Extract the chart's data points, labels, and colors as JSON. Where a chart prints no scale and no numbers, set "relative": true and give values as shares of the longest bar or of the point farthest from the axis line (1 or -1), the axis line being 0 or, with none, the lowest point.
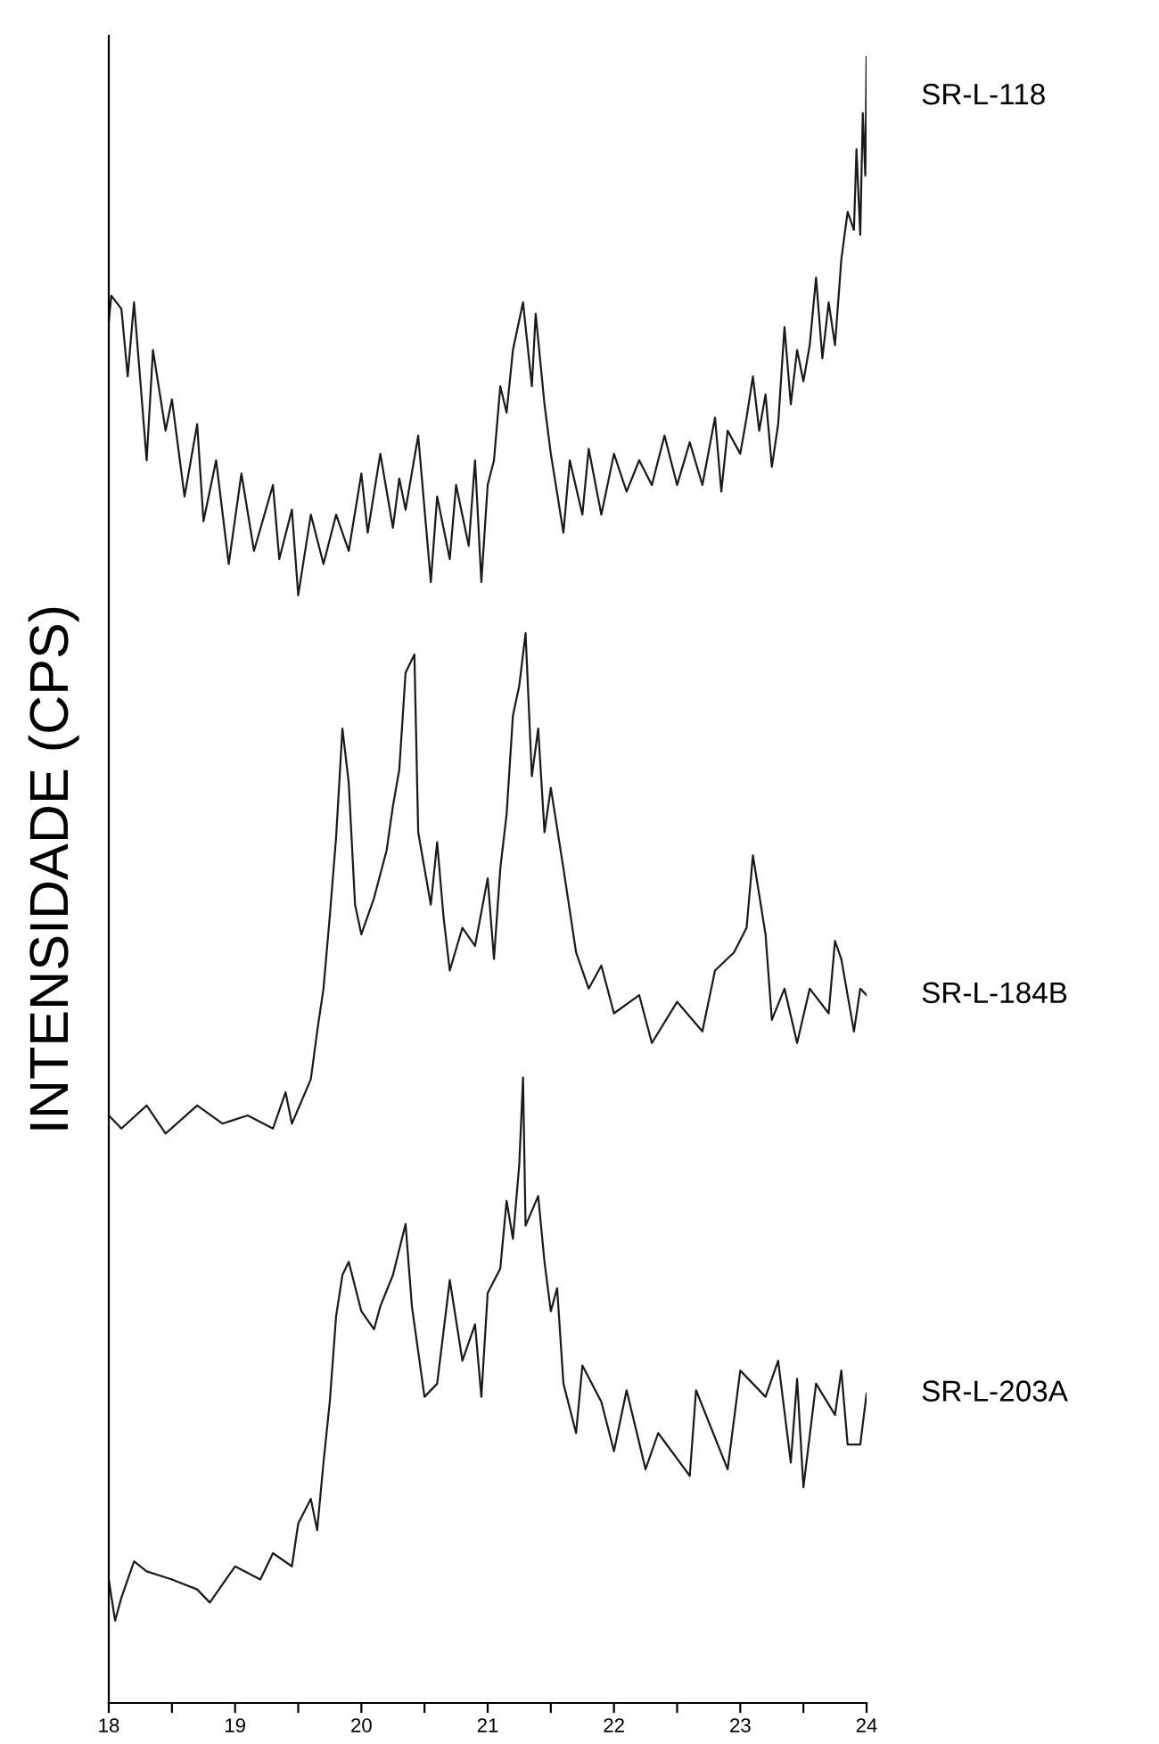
{
  "chart_data": {
    "type": "line",
    "relative": true,
    "ylabel": "INTENSIDADE (CPS)",
    "xlim": [
      18,
      24
    ],
    "xticks": [
      18,
      {
        "value": 18.5,
        "label": null
      },
      19,
      {
        "value": 19.5,
        "label": null
      },
      20,
      {
        "value": 20.5,
        "label": null
      },
      21,
      {
        "value": 21.5,
        "label": null
      },
      22,
      {
        "value": 22.5,
        "label": null
      },
      23,
      {
        "value": 23.5,
        "label": null
      },
      24
    ],
    "tick_labels": "x",
    "series": [
      {
        "name": "SR-L-118",
        "color": "#1a1a1a",
        "x": [
          18.0,
          18.02,
          18.1,
          18.15,
          18.2,
          18.25,
          18.3,
          18.35,
          18.45,
          18.5,
          18.6,
          18.7,
          18.75,
          18.85,
          18.95,
          19.05,
          19.15,
          19.3,
          19.35,
          19.45,
          19.5,
          19.6,
          19.7,
          19.8,
          19.9,
          20.0,
          20.05,
          20.15,
          20.25,
          20.3,
          20.35,
          20.45,
          20.55,
          20.6,
          20.7,
          20.75,
          20.85,
          20.9,
          20.95,
          21.0,
          21.05,
          21.1,
          21.15,
          21.2,
          21.28,
          21.35,
          21.38,
          21.45,
          21.5,
          21.6,
          21.65,
          21.75,
          21.8,
          21.9,
          22.0,
          22.1,
          22.2,
          22.3,
          22.4,
          22.5,
          22.6,
          22.7,
          22.8,
          22.85,
          22.9,
          23.0,
          23.05,
          23.1,
          23.15,
          23.2,
          23.25,
          23.3,
          23.35,
          23.4,
          23.45,
          23.5,
          23.55,
          23.6,
          23.65,
          23.7,
          23.75,
          23.8,
          23.85,
          23.9,
          23.92,
          23.95,
          23.97,
          23.99,
          24.0
        ],
        "values": [
          0.839,
          0.855,
          0.847,
          0.806,
          0.851,
          0.803,
          0.755,
          0.822,
          0.773,
          0.792,
          0.733,
          0.777,
          0.718,
          0.755,
          0.692,
          0.747,
          0.7,
          0.74,
          0.695,
          0.725,
          0.673,
          0.722,
          0.692,
          0.722,
          0.7,
          0.747,
          0.711,
          0.759,
          0.714,
          0.744,
          0.725,
          0.77,
          0.681,
          0.733,
          0.695,
          0.74,
          0.703,
          0.755,
          0.681,
          0.74,
          0.755,
          0.8,
          0.784,
          0.822,
          0.851,
          0.8,
          0.844,
          0.789,
          0.759,
          0.711,
          0.755,
          0.722,
          0.762,
          0.722,
          0.759,
          0.736,
          0.755,
          0.74,
          0.77,
          0.74,
          0.766,
          0.74,
          0.781,
          0.736,
          0.773,
          0.759,
          0.781,
          0.806,
          0.773,
          0.795,
          0.751,
          0.777,
          0.836,
          0.789,
          0.822,
          0.803,
          0.825,
          0.866,
          0.817,
          0.851,
          0.825,
          0.877,
          0.906,
          0.895,
          0.944,
          0.892,
          0.966,
          0.928,
          1.0
        ]
      },
      {
        "name": "SR-L-184B",
        "color": "#1a1a1a",
        "x": [
          18.0,
          18.1,
          18.3,
          18.45,
          18.7,
          18.9,
          19.1,
          19.3,
          19.4,
          19.45,
          19.6,
          19.65,
          19.7,
          19.75,
          19.8,
          19.85,
          19.9,
          19.95,
          20.0,
          20.1,
          20.2,
          20.25,
          20.3,
          20.35,
          20.42,
          20.45,
          20.55,
          20.6,
          20.65,
          20.7,
          20.8,
          20.9,
          21.0,
          21.05,
          21.1,
          21.15,
          21.2,
          21.25,
          21.3,
          21.35,
          21.4,
          21.45,
          21.5,
          21.6,
          21.7,
          21.8,
          21.9,
          22.0,
          22.2,
          22.3,
          22.5,
          22.7,
          22.8,
          22.95,
          23.05,
          23.1,
          23.2,
          23.25,
          23.35,
          23.45,
          23.55,
          23.7,
          23.75,
          23.8,
          23.9,
          23.95,
          24.0
        ],
        "values": [
          0.357,
          0.349,
          0.363,
          0.346,
          0.363,
          0.352,
          0.357,
          0.349,
          0.371,
          0.352,
          0.379,
          0.408,
          0.434,
          0.478,
          0.526,
          0.592,
          0.559,
          0.485,
          0.467,
          0.489,
          0.518,
          0.545,
          0.567,
          0.626,
          0.637,
          0.529,
          0.485,
          0.523,
          0.478,
          0.445,
          0.471,
          0.46,
          0.501,
          0.452,
          0.507,
          0.54,
          0.6,
          0.618,
          0.65,
          0.563,
          0.592,
          0.529,
          0.556,
          0.507,
          0.456,
          0.434,
          0.448,
          0.419,
          0.43,
          0.401,
          0.426,
          0.408,
          0.445,
          0.456,
          0.471,
          0.515,
          0.467,
          0.415,
          0.434,
          0.401,
          0.434,
          0.419,
          0.463,
          0.452,
          0.408,
          0.434,
          0.43
        ]
      },
      {
        "name": "SR-L-203A",
        "color": "#1a1a1a",
        "x": [
          18.0,
          18.05,
          18.1,
          18.2,
          18.3,
          18.5,
          18.7,
          18.8,
          19.0,
          19.2,
          19.3,
          19.45,
          19.5,
          19.6,
          19.65,
          19.7,
          19.75,
          19.8,
          19.85,
          19.9,
          20.0,
          20.1,
          20.15,
          20.25,
          20.35,
          20.4,
          20.5,
          20.6,
          20.7,
          20.8,
          20.9,
          20.95,
          21.0,
          21.1,
          21.15,
          21.2,
          21.25,
          21.28,
          21.3,
          21.4,
          21.45,
          21.5,
          21.55,
          21.6,
          21.7,
          21.75,
          21.9,
          22.0,
          22.1,
          22.25,
          22.35,
          22.6,
          22.65,
          22.9,
          23.0,
          23.2,
          23.3,
          23.4,
          23.45,
          23.5,
          23.6,
          23.75,
          23.8,
          23.85,
          23.95,
          24.0
        ],
        "values": [
          0.075,
          0.05,
          0.064,
          0.086,
          0.08,
          0.075,
          0.069,
          0.061,
          0.083,
          0.075,
          0.091,
          0.083,
          0.109,
          0.124,
          0.105,
          0.146,
          0.183,
          0.235,
          0.26,
          0.268,
          0.238,
          0.227,
          0.241,
          0.26,
          0.291,
          0.241,
          0.186,
          0.194,
          0.257,
          0.208,
          0.23,
          0.186,
          0.249,
          0.264,
          0.305,
          0.282,
          0.327,
          0.38,
          0.29,
          0.308,
          0.268,
          0.238,
          0.252,
          0.194,
          0.164,
          0.205,
          0.183,
          0.153,
          0.19,
          0.142,
          0.164,
          0.138,
          0.19,
          0.142,
          0.202,
          0.186,
          0.208,
          0.146,
          0.197,
          0.131,
          0.194,
          0.175,
          0.202,
          0.157,
          0.157,
          0.188
        ]
      }
    ]
  }
}
